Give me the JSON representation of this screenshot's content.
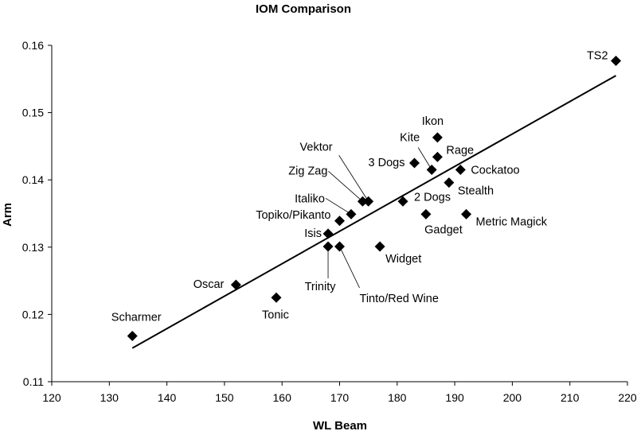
{
  "chart_data": {
    "type": "scatter",
    "title": "IOM Comparison",
    "xlabel": "WL Beam",
    "ylabel": "Arm",
    "xlim": [
      120,
      220
    ],
    "ylim": [
      0.11,
      0.16
    ],
    "xticks": [
      "120",
      "130",
      "140",
      "150",
      "160",
      "170",
      "180",
      "190",
      "200",
      "210",
      "220"
    ],
    "yticks": [
      "0.11",
      "0.12",
      "0.13",
      "0.14",
      "0.15",
      "0.16"
    ],
    "grid": false,
    "legend": "none",
    "marker": "diamond",
    "marker_color": "#000000",
    "points": [
      {
        "label": "Scharmer",
        "x": 134,
        "y": 0.1168
      },
      {
        "label": "Oscar",
        "x": 152,
        "y": 0.1244
      },
      {
        "label": "Tonic",
        "x": 159,
        "y": 0.1225
      },
      {
        "label": "Trinity",
        "x": 168,
        "y": 0.1301
      },
      {
        "label": "Isis",
        "x": 168,
        "y": 0.132
      },
      {
        "label": "Tinto/Red Wine",
        "x": 170,
        "y": 0.1301
      },
      {
        "label": "Topiko/Pikanto",
        "x": 170,
        "y": 0.1339
      },
      {
        "label": "Italiko",
        "x": 172,
        "y": 0.1349
      },
      {
        "label": "Zig Zag",
        "x": 174,
        "y": 0.1368
      },
      {
        "label": "Vektor",
        "x": 175,
        "y": 0.1368
      },
      {
        "label": "Widget",
        "x": 177,
        "y": 0.1301
      },
      {
        "label": "2 Dogs",
        "x": 181,
        "y": 0.1368
      },
      {
        "label": "3 Dogs",
        "x": 183,
        "y": 0.1425
      },
      {
        "label": "Gadget",
        "x": 185,
        "y": 0.1349
      },
      {
        "label": "Kite",
        "x": 186,
        "y": 0.1415
      },
      {
        "label": "Ikon",
        "x": 187,
        "y": 0.1463
      },
      {
        "label": "Rage",
        "x": 187,
        "y": 0.1434
      },
      {
        "label": "Stealth",
        "x": 189,
        "y": 0.1396
      },
      {
        "label": "Cockatoo",
        "x": 191,
        "y": 0.1415
      },
      {
        "label": "Metric Magick",
        "x": 192,
        "y": 0.1349
      },
      {
        "label": "TS2",
        "x": 218,
        "y": 0.1577
      }
    ],
    "trendline": {
      "x": [
        134,
        218
      ],
      "y": [
        0.115,
        0.1555
      ]
    }
  }
}
